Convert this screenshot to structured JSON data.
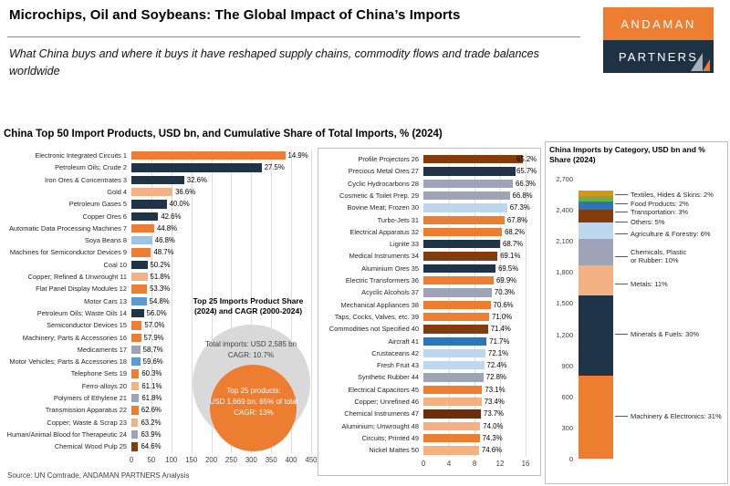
{
  "header": {
    "title": "Microchips, Oil and Soybeans: The Global Impact of China’s Imports",
    "subtitle": "What China buys and where it buys it have reshaped supply chains, commodity flows and trade balances worldwide",
    "logo": {
      "line1": "ANDAMAN",
      "line2": "PARTNERS"
    }
  },
  "section_title": "China Top 50 Import Products, USD bn, and Cumulative Share of Total Imports, % (2024)",
  "source": "Source: UN Comtrade, ANDAMAN PARTNERS Analysis",
  "annotation": {
    "title_line1": "Top 25 Imports Product Share",
    "title_line2": "(2024) and CAGR (2000-2024)",
    "outer_line1": "Total imports: USD 2,585 bn",
    "outer_line2": "CAGR: 10.7%",
    "inner_line1": "Top 25 products:",
    "inner_line2": "USD 1,669 bn, 65% of total",
    "inner_line3": "CAGR: 13%"
  },
  "colors": {
    "orange": "#ED7D31",
    "navy": "#1F3449",
    "peach": "#F4B183",
    "lightblue": "#9DC3E6",
    "paleblue": "#BDD7EE",
    "carblue": "#5B9BD5",
    "blue": "#2E75B6",
    "gray": "#9EA3B8",
    "brown": "#843C0C",
    "darkbrown": "#6B2E0A",
    "gold": "#D9921E",
    "green": "#70AD47",
    "circle_gray": "#D9D9D9",
    "logo_orange": "#ED7D31",
    "logo_navy": "#1E3246"
  },
  "chart_data": [
    {
      "type": "bar",
      "title": "China Top 50 Import Products, ranks 1-25, USD bn (2024)",
      "orientation": "horizontal",
      "xlim": [
        0,
        450
      ],
      "x_ticks": [
        0,
        50,
        100,
        150,
        200,
        250,
        300,
        350,
        400,
        450
      ],
      "data_labels": "cumulative share of total imports, %",
      "items": [
        {
          "rank": 1,
          "label": "Electronic Integrated Circuits",
          "value_usd_bn": 385,
          "cumulative_share": "14.9%",
          "color": "orange"
        },
        {
          "rank": 2,
          "label": "Petroleum Oils; Crude",
          "value_usd_bn": 326,
          "cumulative_share": "27.5%",
          "color": "navy"
        },
        {
          "rank": 3,
          "label": "Iron Ores & Concentrates",
          "value_usd_bn": 132,
          "cumulative_share": "32.6%",
          "color": "navy"
        },
        {
          "rank": 4,
          "label": "Gold",
          "value_usd_bn": 103,
          "cumulative_share": "36.6%",
          "color": "peach"
        },
        {
          "rank": 5,
          "label": "Petroleum Gases",
          "value_usd_bn": 88,
          "cumulative_share": "40.0%",
          "color": "navy"
        },
        {
          "rank": 6,
          "label": "Copper Ores",
          "value_usd_bn": 67,
          "cumulative_share": "42.6%",
          "color": "navy"
        },
        {
          "rank": 7,
          "label": "Automatic Data Processing Machines",
          "value_usd_bn": 57,
          "cumulative_share": "44.8%",
          "color": "orange"
        },
        {
          "rank": 8,
          "label": "Soya Beans",
          "value_usd_bn": 52,
          "cumulative_share": "46.8%",
          "color": "lightblue"
        },
        {
          "rank": 9,
          "label": "Machines for Semiconductor Devices",
          "value_usd_bn": 49,
          "cumulative_share": "48.7%",
          "color": "orange"
        },
        {
          "rank": 10,
          "label": "Coal",
          "value_usd_bn": 40,
          "cumulative_share": "50.2%",
          "color": "navy"
        },
        {
          "rank": 11,
          "label": "Copper; Refined & Unwrought",
          "value_usd_bn": 40,
          "cumulative_share": "51.8%",
          "color": "peach"
        },
        {
          "rank": 12,
          "label": "Flat Panel Display Modules",
          "value_usd_bn": 39,
          "cumulative_share": "53.3%",
          "color": "orange"
        },
        {
          "rank": 13,
          "label": "Motor Cars",
          "value_usd_bn": 38,
          "cumulative_share": "54.8%",
          "color": "carblue"
        },
        {
          "rank": 14,
          "label": "Petroleum Oils; Waste Oils",
          "value_usd_bn": 31,
          "cumulative_share": "56.0%",
          "color": "navy"
        },
        {
          "rank": 15,
          "label": "Semiconductor Devices",
          "value_usd_bn": 26,
          "cumulative_share": "57.0%",
          "color": "orange"
        },
        {
          "rank": 16,
          "label": "Machinery; Parts & Accessories",
          "value_usd_bn": 24,
          "cumulative_share": "57.9%",
          "color": "orange"
        },
        {
          "rank": 17,
          "label": "Medicaments",
          "value_usd_bn": 22,
          "cumulative_share": "58.7%",
          "color": "gray"
        },
        {
          "rank": 18,
          "label": "Motor Vehicles; Parts & Accessories",
          "value_usd_bn": 22,
          "cumulative_share": "59.6%",
          "color": "carblue"
        },
        {
          "rank": 19,
          "label": "Telephone Sets",
          "value_usd_bn": 19,
          "cumulative_share": "60.3%",
          "color": "orange"
        },
        {
          "rank": 20,
          "label": "Ferro-alloys",
          "value_usd_bn": 19,
          "cumulative_share": "61.1%",
          "color": "peach"
        },
        {
          "rank": 21,
          "label": "Polymers of Ethylene",
          "value_usd_bn": 19,
          "cumulative_share": "61.8%",
          "color": "gray"
        },
        {
          "rank": 22,
          "label": "Transmission Apparatus",
          "value_usd_bn": 18,
          "cumulative_share": "62.6%",
          "color": "orange"
        },
        {
          "rank": 23,
          "label": "Copper; Waste & Scrap",
          "value_usd_bn": 17,
          "cumulative_share": "63.2%",
          "color": "peach"
        },
        {
          "rank": 24,
          "label": "Human/Animal Blood for Therapeutic",
          "value_usd_bn": 17,
          "cumulative_share": "63.9%",
          "color": "gray"
        },
        {
          "rank": 25,
          "label": "Chemical Wood Pulp",
          "value_usd_bn": 17,
          "cumulative_share": "64.6%",
          "color": "brown"
        }
      ]
    },
    {
      "type": "bar",
      "title": "China Top 50 Import Products, ranks 26-50, USD bn (2024)",
      "orientation": "horizontal",
      "xlim": [
        0,
        16
      ],
      "x_ticks": [
        0,
        4,
        8,
        12,
        16
      ],
      "data_labels": "cumulative share of total imports, %",
      "items": [
        {
          "rank": 26,
          "label": "Profile Projectors",
          "value_usd_bn": 15.6,
          "cumulative_share": "65.2%",
          "color": "brown"
        },
        {
          "rank": 27,
          "label": "Precious Metal Ores",
          "value_usd_bn": 14.4,
          "cumulative_share": "65.7%",
          "color": "navy"
        },
        {
          "rank": 28,
          "label": "Cyclic Hydrocarbons",
          "value_usd_bn": 14.0,
          "cumulative_share": "66.3%",
          "color": "gray"
        },
        {
          "rank": 29,
          "label": "Cosmetic & Toilet Prep.",
          "value_usd_bn": 13.5,
          "cumulative_share": "66.8%",
          "color": "gray"
        },
        {
          "rank": 30,
          "label": "Bovine Meat; Frozen",
          "value_usd_bn": 13.1,
          "cumulative_share": "67.3%",
          "color": "paleblue"
        },
        {
          "rank": 31,
          "label": "Turbo-Jets",
          "value_usd_bn": 12.7,
          "cumulative_share": "67.8%",
          "color": "orange"
        },
        {
          "rank": 32,
          "label": "Electrical Apparatus",
          "value_usd_bn": 12.3,
          "cumulative_share": "68.2%",
          "color": "orange"
        },
        {
          "rank": 33,
          "label": "Lignite",
          "value_usd_bn": 12.0,
          "cumulative_share": "68.7%",
          "color": "navy"
        },
        {
          "rank": 34,
          "label": "Medical Instruments",
          "value_usd_bn": 11.6,
          "cumulative_share": "69.1%",
          "color": "brown"
        },
        {
          "rank": 35,
          "label": "Aluminium Ores",
          "value_usd_bn": 11.3,
          "cumulative_share": "69.5%",
          "color": "navy"
        },
        {
          "rank": 36,
          "label": "Electric Transformers",
          "value_usd_bn": 11.0,
          "cumulative_share": "69.9%",
          "color": "orange"
        },
        {
          "rank": 37,
          "label": "Acyclic Alcohols",
          "value_usd_bn": 10.7,
          "cumulative_share": "70.3%",
          "color": "gray"
        },
        {
          "rank": 38,
          "label": "Mechanical Appliances",
          "value_usd_bn": 10.5,
          "cumulative_share": "70.6%",
          "color": "orange"
        },
        {
          "rank": 39,
          "label": "Taps, Cocks, Valves, etc.",
          "value_usd_bn": 10.3,
          "cumulative_share": "71.0%",
          "color": "orange"
        },
        {
          "rank": 40,
          "label": "Commodities not Specified",
          "value_usd_bn": 10.1,
          "cumulative_share": "71.4%",
          "color": "brown"
        },
        {
          "rank": 41,
          "label": "Aircraft",
          "value_usd_bn": 9.9,
          "cumulative_share": "71.7%",
          "color": "blue"
        },
        {
          "rank": 42,
          "label": "Crustaceans",
          "value_usd_bn": 9.7,
          "cumulative_share": "72.1%",
          "color": "paleblue"
        },
        {
          "rank": 43,
          "label": "Fresh Fruit",
          "value_usd_bn": 9.5,
          "cumulative_share": "72.4%",
          "color": "paleblue"
        },
        {
          "rank": 44,
          "label": "Synthetic Rubber",
          "value_usd_bn": 9.4,
          "cumulative_share": "72.8%",
          "color": "gray"
        },
        {
          "rank": 45,
          "label": "Electrical Capacitors",
          "value_usd_bn": 9.2,
          "cumulative_share": "73.1%",
          "color": "orange"
        },
        {
          "rank": 46,
          "label": "Copper; Unrefined",
          "value_usd_bn": 9.1,
          "cumulative_share": "73.4%",
          "color": "peach"
        },
        {
          "rank": 47,
          "label": "Chemical Instruments",
          "value_usd_bn": 9.0,
          "cumulative_share": "73.7%",
          "color": "darkbrown"
        },
        {
          "rank": 48,
          "label": "Aluminium; Unwrought",
          "value_usd_bn": 8.9,
          "cumulative_share": "74.0%",
          "color": "peach"
        },
        {
          "rank": 49,
          "label": "Circuits; Printed",
          "value_usd_bn": 8.8,
          "cumulative_share": "74.3%",
          "color": "orange"
        },
        {
          "rank": 50,
          "label": "Nickel Mattes",
          "value_usd_bn": 8.7,
          "cumulative_share": "74.6%",
          "color": "peach"
        }
      ]
    },
    {
      "type": "bar",
      "subtype": "stacked-column",
      "title": "China Imports by Category, USD bn and % Share (2024)",
      "ylim": [
        0,
        2700
      ],
      "y_ticks": [
        "0",
        "300",
        "600",
        "900",
        "1,200",
        "1,500",
        "1,800",
        "2,100",
        "2,400",
        "2,700"
      ],
      "total_usd_bn": 2585,
      "segments_bottom_to_top": [
        {
          "label": "Machinery & Electronics",
          "share": "31%",
          "value_usd_bn": 801,
          "color": "orange"
        },
        {
          "label": "Minerals & Fuels",
          "share": "30%",
          "value_usd_bn": 776,
          "color": "navy"
        },
        {
          "label": "Metals",
          "share": "11%",
          "value_usd_bn": 284,
          "color": "peach"
        },
        {
          "label": "Chemicals, Plastic or Rubber",
          "share": "10%",
          "value_usd_bn": 259,
          "color": "gray",
          "label_lines": [
            "Chemicals, Plastic",
            "or Rubber: 10%"
          ]
        },
        {
          "label": "Agriculture & Forestry",
          "share": "6%",
          "value_usd_bn": 155,
          "color": "paleblue"
        },
        {
          "label": "Others",
          "share": "5%",
          "value_usd_bn": 129,
          "color": "brown"
        },
        {
          "label": "Transportation",
          "share": "3%",
          "value_usd_bn": 78,
          "color": "blue"
        },
        {
          "label": "Food Products",
          "share": "2%",
          "value_usd_bn": 52,
          "color": "green"
        },
        {
          "label": "Textiles, Hides & Skins",
          "share": "2%",
          "value_usd_bn": 52,
          "color": "gold"
        }
      ]
    }
  ]
}
